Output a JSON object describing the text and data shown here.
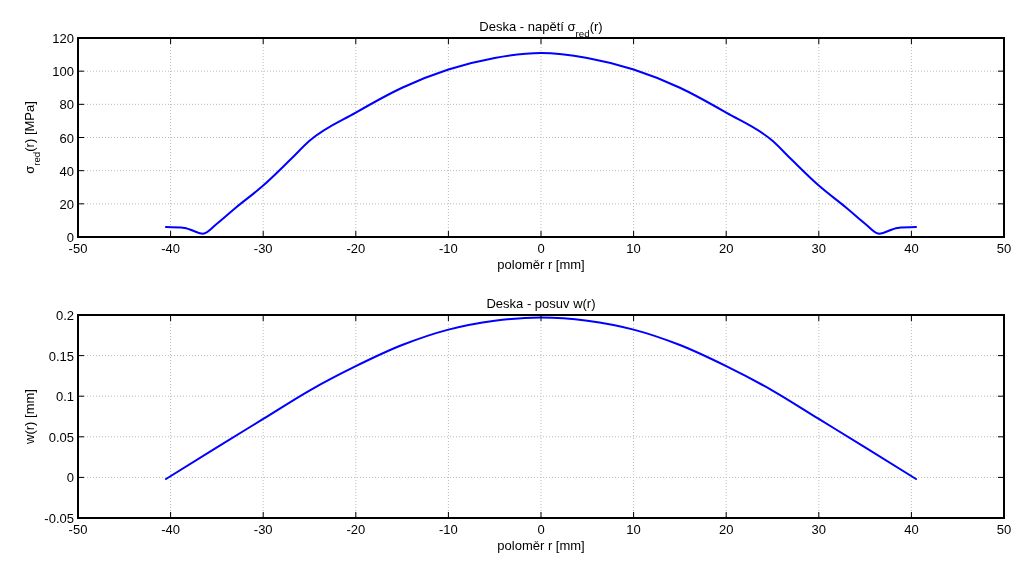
{
  "chart_data": [
    {
      "type": "line",
      "title": "Deska - napětí σ$_{red}$(r)",
      "xlabel": "poloměr r [mm]",
      "ylabel": "σ$_{red}$(r) [MPa]",
      "xlim": [
        -50,
        50
      ],
      "xticks": [
        -50,
        -40,
        -30,
        -20,
        -10,
        0,
        10,
        20,
        30,
        40,
        50
      ],
      "ylim": [
        0,
        120
      ],
      "yticks": [
        0,
        20,
        40,
        60,
        80,
        100,
        120
      ],
      "grid": true,
      "line_style": "solid",
      "marker": "none",
      "series": [
        {
          "color": "#0000ff",
          "x": [
            -40.5,
            -38.5,
            -36.5,
            -35,
            -33,
            -30,
            -27,
            -25,
            -20,
            -15,
            -10,
            -5,
            0,
            5,
            10,
            15,
            20,
            25,
            27,
            30,
            33,
            35,
            36.5,
            38.5,
            40.5
          ],
          "values": [
            6,
            5.5,
            2,
            8,
            17.5,
            31,
            47,
            58,
            75,
            90,
            101,
            108,
            111,
            108,
            101,
            90,
            75,
            58,
            47,
            31,
            17.5,
            8,
            2,
            5.5,
            6
          ]
        }
      ]
    },
    {
      "type": "line",
      "title": "Deska - posuv w(r)",
      "xlabel": "poloměr r [mm]",
      "ylabel": "w(r) [mm]",
      "xlim": [
        -50,
        50
      ],
      "xticks": [
        -50,
        -40,
        -30,
        -20,
        -10,
        0,
        10,
        20,
        30,
        40,
        50
      ],
      "ylim": [
        -0.05,
        0.2
      ],
      "yticks": [
        -0.05,
        0,
        0.05,
        0.1,
        0.15,
        0.2
      ],
      "grid": true,
      "line_style": "solid",
      "marker": "none",
      "series": [
        {
          "color": "#0000ff",
          "x": [
            -40.5,
            -35,
            -30,
            -25,
            -20,
            -15,
            -10,
            -5,
            0,
            5,
            10,
            15,
            20,
            25,
            30,
            35,
            40.5
          ],
          "values": [
            -0.002,
            0.037,
            0.072,
            0.107,
            0.137,
            0.163,
            0.182,
            0.193,
            0.197,
            0.193,
            0.182,
            0.163,
            0.137,
            0.107,
            0.072,
            0.037,
            -0.002
          ]
        }
      ]
    }
  ]
}
